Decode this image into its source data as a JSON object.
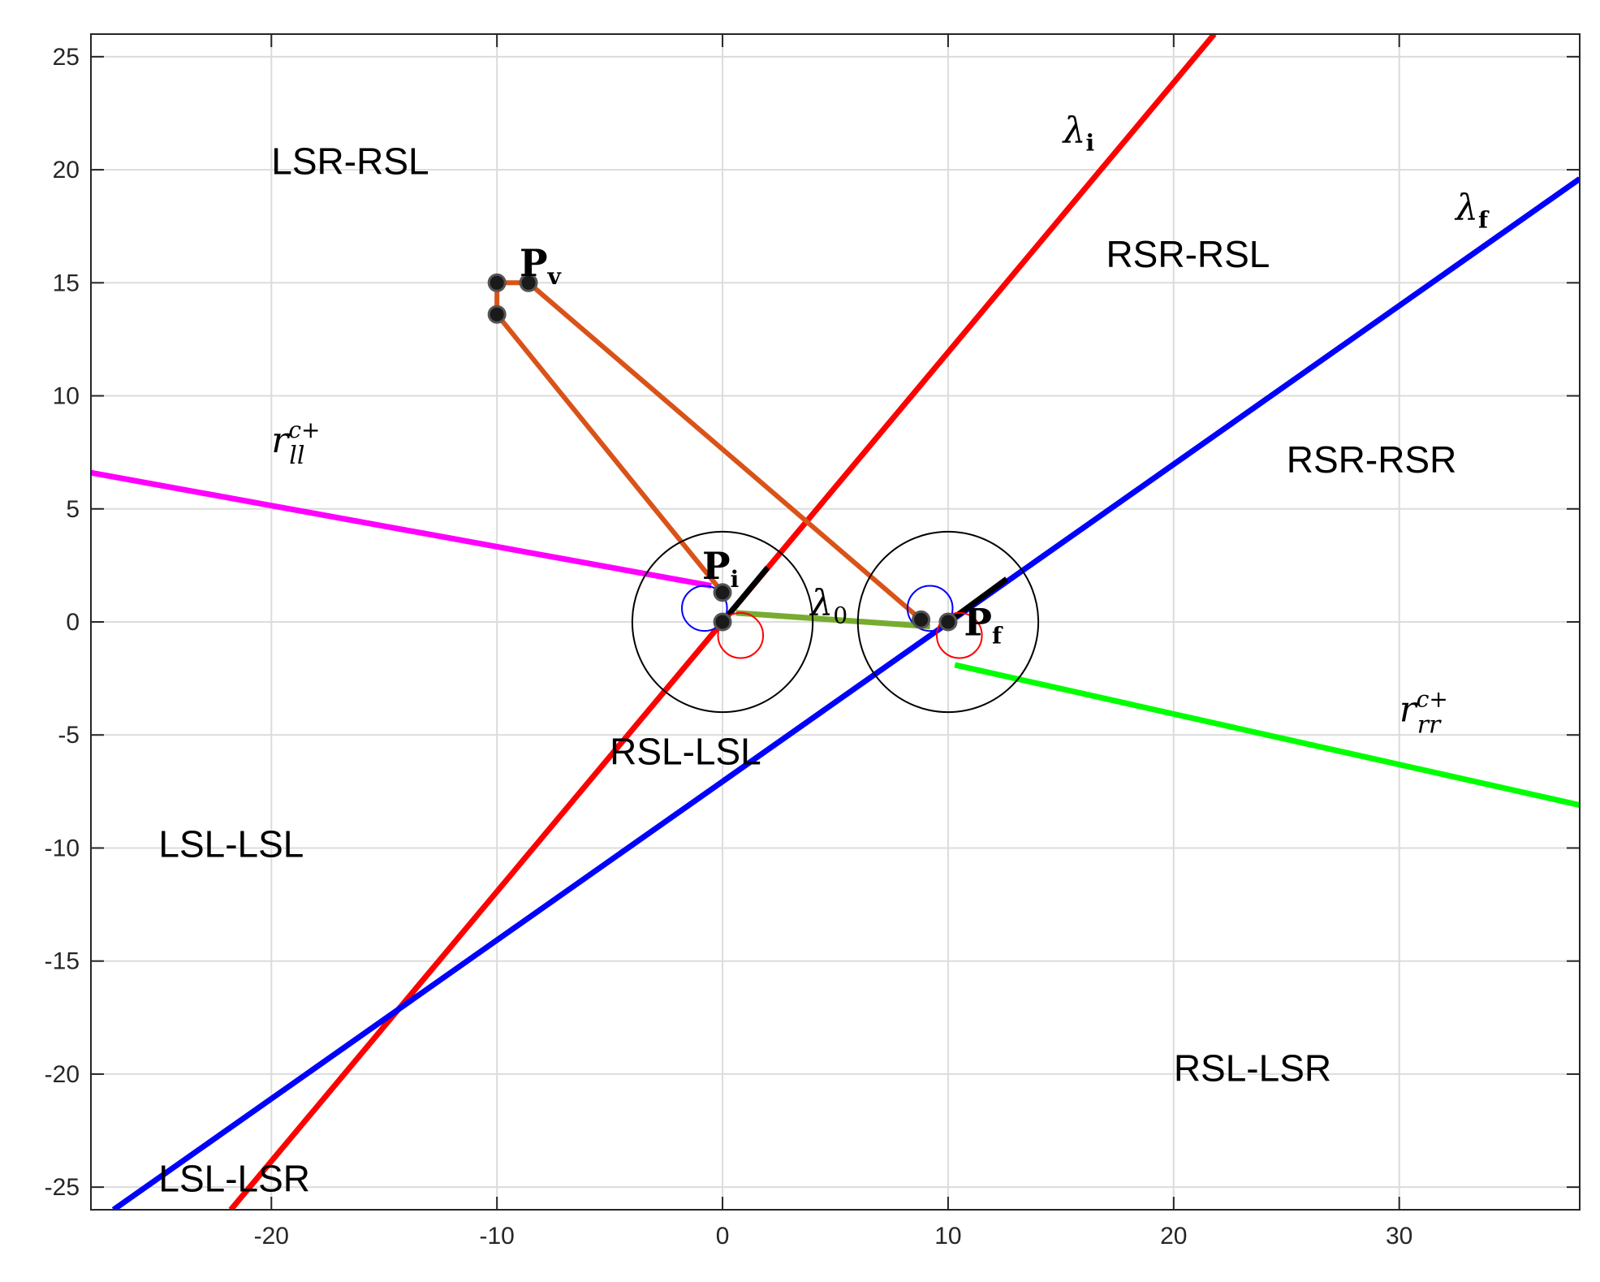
{
  "chart_data": {
    "type": "line",
    "title": "",
    "xlabel": "",
    "ylabel": "",
    "xlim": [
      -28,
      38
    ],
    "ylim": [
      -26,
      26
    ],
    "grid": true,
    "xticks": [
      -20,
      -10,
      0,
      10,
      20,
      30
    ],
    "xtick_labels": [
      "-20",
      "-10",
      "0",
      "10",
      "20",
      "30"
    ],
    "yticks": [
      -25,
      -20,
      -15,
      -10,
      -5,
      0,
      5,
      10,
      15,
      20,
      25
    ],
    "ytick_labels": [
      "-25",
      "-20",
      "-15",
      "-10",
      "-5",
      "0",
      "5",
      "10",
      "15",
      "20",
      "25"
    ],
    "colors": {
      "lambda_i": "#ff0000",
      "lambda_f": "#0000ff",
      "r_ll": "#ff00ff",
      "r_rr": "#00ff00",
      "lambda_0": "#77ac30",
      "path": "#d95319",
      "heading": "#000000",
      "small_left": "#0000ff",
      "small_right": "#ff0000"
    },
    "series": [
      {
        "name": "λi",
        "key": "lambda_i",
        "x": [
          -21.8,
          21.8
        ],
        "y": [
          -26,
          26
        ]
      },
      {
        "name": "λf",
        "key": "lambda_f",
        "x": [
          -27,
          38
        ],
        "y": [
          -26,
          19.6
        ]
      },
      {
        "name": "r_ll^c+",
        "key": "r_ll",
        "x": [
          -28,
          -0.5
        ],
        "y": [
          6.6,
          1.6
        ]
      },
      {
        "name": "r_rr^c+",
        "key": "r_rr",
        "x": [
          10.3,
          38
        ],
        "y": [
          -1.9,
          -8.1
        ]
      },
      {
        "name": "λ0",
        "key": "lambda_0",
        "x": [
          0.6,
          9.2
        ],
        "y": [
          0.4,
          -0.2
        ]
      },
      {
        "name": "",
        "key": "path",
        "x": [
          0,
          -10,
          -10,
          -8.6,
          8.8
        ],
        "y": [
          1.3,
          13.6,
          15,
          15,
          0.1
        ]
      },
      {
        "name": "",
        "key": "heading",
        "x": [
          0,
          2.0
        ],
        "y": [
          0,
          2.4
        ]
      },
      {
        "name": "",
        "key": "heading",
        "x": [
          10,
          12.6
        ],
        "y": [
          0,
          1.9
        ]
      }
    ],
    "circles": [
      {
        "cx": 0,
        "cy": 0,
        "r": 4.0,
        "color": "#000000"
      },
      {
        "cx": 10,
        "cy": 0,
        "r": 4.0,
        "color": "#000000"
      },
      {
        "cx": -0.8,
        "cy": 0.6,
        "r": 1.0,
        "color": "#0000ff"
      },
      {
        "cx": 0.8,
        "cy": -0.6,
        "r": 1.0,
        "color": "#ff0000"
      },
      {
        "cx": 9.2,
        "cy": 0.6,
        "r": 1.0,
        "color": "#0000ff"
      },
      {
        "cx": 10.5,
        "cy": -0.6,
        "r": 1.0,
        "color": "#ff0000"
      }
    ],
    "points": [
      {
        "x": 0,
        "y": 0
      },
      {
        "x": 0,
        "y": 1.3
      },
      {
        "x": -10,
        "y": 15
      },
      {
        "x": -8.6,
        "y": 15
      },
      {
        "x": -10,
        "y": 13.6
      },
      {
        "x": 8.8,
        "y": 0.1
      },
      {
        "x": 10,
        "y": 0
      }
    ],
    "region_labels": [
      {
        "text": "LSR-RSL",
        "x": -20,
        "y": 19.8
      },
      {
        "text": "RSR-RSL",
        "x": 17,
        "y": 15.7
      },
      {
        "text": "RSR-RSR",
        "x": 25,
        "y": 6.6
      },
      {
        "text": "RSL-LSL",
        "x": -5,
        "y": -6.3
      },
      {
        "text": "LSL-LSL",
        "x": -25,
        "y": -10.4
      },
      {
        "text": "RSL-LSR",
        "x": 20,
        "y": -20.3
      },
      {
        "text": "LSL-LSR",
        "x": -25,
        "y": -25.2
      }
    ],
    "math_labels": [
      {
        "base": "λ",
        "sub": "i",
        "x": 15.1,
        "y": 21.2,
        "bold_sub": true
      },
      {
        "base": "λ",
        "sub": "f",
        "x": 32.5,
        "y": 17.8,
        "bold_sub": true
      },
      {
        "base": "P",
        "sub": "v",
        "x": -9.0,
        "y": 15.3,
        "bold": true
      },
      {
        "base": "P",
        "sub": "i",
        "x": -0.9,
        "y": 1.9,
        "bold": true
      },
      {
        "base": "P",
        "sub": "f",
        "x": 10.7,
        "y": -0.6,
        "bold": true
      },
      {
        "base": "λ",
        "sub": "0",
        "x": 3.9,
        "y": 0.3,
        "bold_sub": false
      },
      {
        "base": "r",
        "sub": "ll",
        "sup": "c+",
        "x": -20,
        "y": 7.5
      },
      {
        "base": "r",
        "sub": "rr",
        "sup": "c+",
        "x": 30,
        "y": -4.4
      }
    ]
  }
}
